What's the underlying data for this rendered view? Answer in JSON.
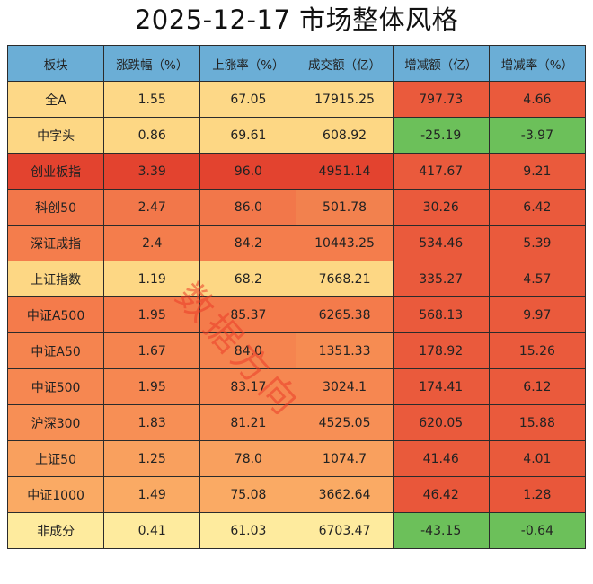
{
  "title": "2025-12-17 市场整体风格",
  "watermark": "数据方向",
  "colors": {
    "header": "#6baed6",
    "positive_change": "#ea5a3c",
    "negative_change": "#6cc05a",
    "border": "#2b2b2b"
  },
  "table": {
    "columns": [
      "板块",
      "涨跌幅（%）",
      "上涨率（%）",
      "成交额（亿）",
      "增减额（亿）",
      "增减率（%）"
    ],
    "rows": [
      {
        "name": "全A",
        "change_pct": "1.55",
        "up_rate": "67.05",
        "turnover": "17915.25",
        "delta_amount": "797.73",
        "delta_rate": "4.66",
        "row_color": "#fdd887",
        "turnover_color": "#fdd887",
        "delta_color": "#ea5a3c"
      },
      {
        "name": "中字头",
        "change_pct": "0.86",
        "up_rate": "69.61",
        "turnover": "608.92",
        "delta_amount": "-25.19",
        "delta_rate": "-3.97",
        "row_color": "#fdd784",
        "turnover_color": "#fdd784",
        "delta_color": "#6cc05a"
      },
      {
        "name": "创业板指",
        "change_pct": "3.39",
        "up_rate": "96.0",
        "turnover": "4951.14",
        "delta_amount": "417.67",
        "delta_rate": "9.21",
        "row_color": "#e3432f",
        "turnover_color": "#e3432f",
        "delta_color": "#ea5a3c"
      },
      {
        "name": "科创50",
        "change_pct": "2.47",
        "up_rate": "86.0",
        "turnover": "501.78",
        "delta_amount": "30.26",
        "delta_rate": "6.42",
        "row_color": "#f2774a",
        "turnover_color": "#f2814e",
        "delta_color": "#ea5a3c"
      },
      {
        "name": "深证成指",
        "change_pct": "2.4",
        "up_rate": "84.2",
        "turnover": "10443.25",
        "delta_amount": "534.46",
        "delta_rate": "5.39",
        "row_color": "#f47d4c",
        "turnover_color": "#f47d4c",
        "delta_color": "#ea5a3c"
      },
      {
        "name": "上证指数",
        "change_pct": "1.19",
        "up_rate": "68.2",
        "turnover": "7668.21",
        "delta_amount": "335.27",
        "delta_rate": "4.57",
        "row_color": "#fdd784",
        "turnover_color": "#fdd784",
        "delta_color": "#ea5a3c"
      },
      {
        "name": "中证A500",
        "change_pct": "1.95",
        "up_rate": "85.37",
        "turnover": "6265.38",
        "delta_amount": "568.13",
        "delta_rate": "9.97",
        "row_color": "#f47b4b",
        "turnover_color": "#f47b4b",
        "delta_color": "#ea5a3c"
      },
      {
        "name": "中证A50",
        "change_pct": "1.67",
        "up_rate": "84.0",
        "turnover": "1351.33",
        "delta_amount": "178.92",
        "delta_rate": "15.26",
        "row_color": "#f5844f",
        "turnover_color": "#f68c52",
        "delta_color": "#ea5a3c"
      },
      {
        "name": "中证500",
        "change_pct": "1.95",
        "up_rate": "83.17",
        "turnover": "3024.1",
        "delta_amount": "174.41",
        "delta_rate": "6.12",
        "row_color": "#f68751",
        "turnover_color": "#f68751",
        "delta_color": "#ea5a3c"
      },
      {
        "name": "沪深300",
        "change_pct": "1.83",
        "up_rate": "81.21",
        "turnover": "4525.05",
        "delta_amount": "620.05",
        "delta_rate": "15.88",
        "row_color": "#f78f55",
        "turnover_color": "#f78f55",
        "delta_color": "#ea5a3c"
      },
      {
        "name": "上证50",
        "change_pct": "1.25",
        "up_rate": "78.0",
        "turnover": "1074.7",
        "delta_amount": "41.46",
        "delta_rate": "4.01",
        "row_color": "#f9a05e",
        "turnover_color": "#f9a05e",
        "delta_color": "#e95a3b"
      },
      {
        "name": "中证1000",
        "change_pct": "1.49",
        "up_rate": "75.08",
        "turnover": "3662.64",
        "delta_amount": "46.42",
        "delta_rate": "1.28",
        "row_color": "#faaa64",
        "turnover_color": "#faaa64",
        "delta_color": "#e9573a"
      },
      {
        "name": "非成分",
        "change_pct": "0.41",
        "up_rate": "61.03",
        "turnover": "6703.47",
        "delta_amount": "-43.15",
        "delta_rate": "-0.64",
        "row_color": "#feeb9e",
        "turnover_color": "#feeb9e",
        "delta_color": "#6cc05a"
      }
    ]
  },
  "chart_data": {
    "type": "table",
    "title": "2025-12-17 市场整体风格",
    "columns": [
      "板块",
      "涨跌幅（%）",
      "上涨率（%）",
      "成交额（亿）",
      "增减额（亿）",
      "增减率（%）"
    ],
    "rows": [
      [
        "全A",
        1.55,
        67.05,
        17915.25,
        797.73,
        4.66
      ],
      [
        "中字头",
        0.86,
        69.61,
        608.92,
        -25.19,
        -3.97
      ],
      [
        "创业板指",
        3.39,
        96.0,
        4951.14,
        417.67,
        9.21
      ],
      [
        "科创50",
        2.47,
        86.0,
        501.78,
        30.26,
        6.42
      ],
      [
        "深证成指",
        2.4,
        84.2,
        10443.25,
        534.46,
        5.39
      ],
      [
        "上证指数",
        1.19,
        68.2,
        7668.21,
        335.27,
        4.57
      ],
      [
        "中证A500",
        1.95,
        85.37,
        6265.38,
        568.13,
        9.97
      ],
      [
        "中证A50",
        1.67,
        84.0,
        1351.33,
        178.92,
        15.26
      ],
      [
        "中证500",
        1.95,
        83.17,
        3024.1,
        174.41,
        6.12
      ],
      [
        "沪深300",
        1.83,
        81.21,
        4525.05,
        620.05,
        15.88
      ],
      [
        "上证50",
        1.25,
        78.0,
        1074.7,
        41.46,
        4.01
      ],
      [
        "中证1000",
        1.49,
        75.08,
        3662.64,
        46.42,
        1.28
      ],
      [
        "非成分",
        0.41,
        61.03,
        6703.47,
        -43.15,
        -0.64
      ]
    ],
    "legend": "heatmap-colored cells: yellow→red by magnitude; red = increase, green = decrease in 增减 columns"
  }
}
